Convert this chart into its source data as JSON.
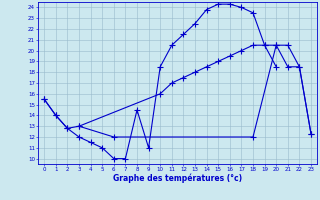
{
  "title": "Graphe des températures (°c)",
  "bg_color": "#cce8ef",
  "line_color": "#0000cc",
  "grid_color": "#99bbcc",
  "xlim": [
    -0.5,
    23.5
  ],
  "ylim": [
    9.5,
    24.5
  ],
  "yticks": [
    10,
    11,
    12,
    13,
    14,
    15,
    16,
    17,
    18,
    19,
    20,
    21,
    22,
    23,
    24
  ],
  "curve1_x": [
    0,
    1,
    2,
    3,
    4,
    5,
    6,
    7,
    8,
    9,
    10,
    11,
    12,
    13,
    14,
    15,
    16,
    17,
    18,
    19,
    20
  ],
  "curve1_y": [
    15.5,
    14.0,
    12.8,
    12.0,
    11.5,
    11.0,
    10.0,
    10.0,
    14.5,
    11.0,
    18.5,
    20.5,
    21.5,
    22.5,
    23.8,
    24.3,
    24.3,
    24.0,
    23.5,
    20.5,
    18.5
  ],
  "curve2_x": [
    3,
    6,
    18,
    20,
    21,
    22,
    23
  ],
  "curve2_y": [
    13.0,
    12.0,
    12.0,
    20.5,
    18.5,
    18.5,
    12.3
  ],
  "curve3_x": [
    0,
    1,
    2,
    3,
    10,
    11,
    12,
    13,
    14,
    15,
    16,
    17,
    18,
    19,
    20,
    21,
    22,
    23
  ],
  "curve3_y": [
    15.5,
    14.0,
    12.8,
    13.0,
    16.0,
    17.0,
    17.5,
    18.0,
    18.5,
    19.0,
    19.5,
    20.0,
    20.5,
    20.5,
    20.5,
    20.5,
    18.5,
    12.3
  ]
}
